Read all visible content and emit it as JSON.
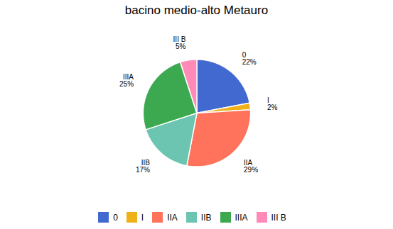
{
  "chart_data": {
    "type": "pie",
    "title": "bacino medio-alto Metauro",
    "categories": [
      "0",
      "I",
      "IIA",
      "IIB",
      "IIIA",
      "III B"
    ],
    "values": [
      22,
      2,
      29,
      17,
      25,
      5
    ],
    "value_labels": [
      "22%",
      "2%",
      "29%",
      "17%",
      "25%",
      "5%"
    ],
    "data_labels": true,
    "legend": "bottom"
  }
}
